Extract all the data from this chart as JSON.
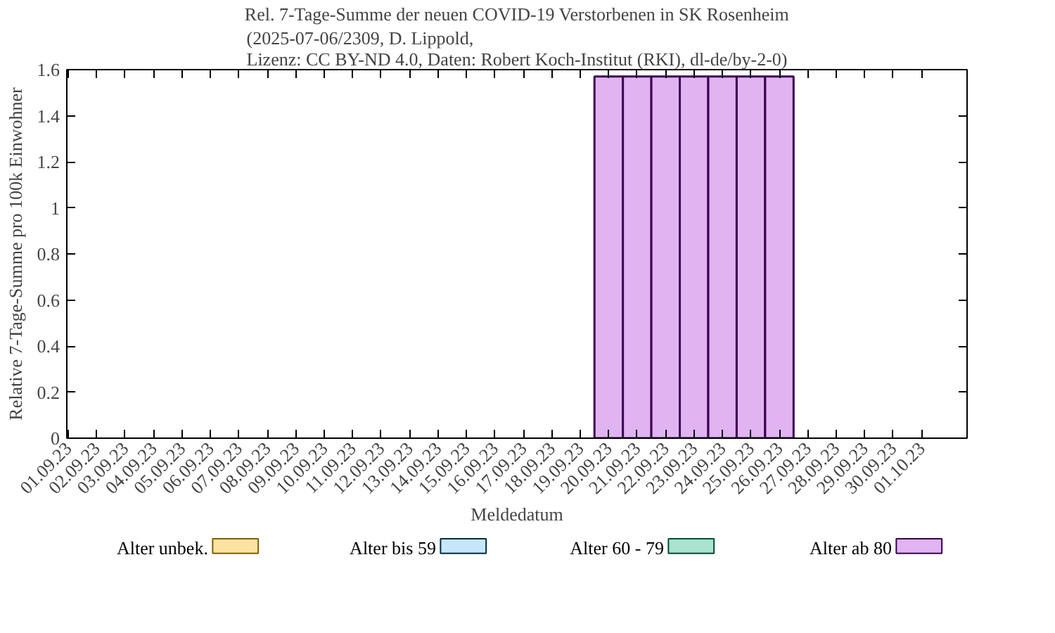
{
  "chart_data": {
    "type": "bar",
    "stacked": true,
    "title": "Rel. 7-Tage-Summe der neuen COVID-19 Verstorbenen in SK Rosenheim",
    "subtitle": "(2025-07-06/2309, D. Lippold,\nLizenz: CC BY-ND 4.0, Daten: Robert Koch-Institut (RKI), dl-de/by-2-0)",
    "xlabel": "Meldedatum",
    "ylabel": "Relative 7-Tage-Summe pro 100k Einwohner",
    "categories": [
      "01.09.23",
      "02.09.23",
      "03.09.23",
      "04.09.23",
      "05.09.23",
      "06.09.23",
      "07.09.23",
      "08.09.23",
      "09.09.23",
      "10.09.23",
      "11.09.23",
      "12.09.23",
      "13.09.23",
      "14.09.23",
      "15.09.23",
      "16.09.23",
      "17.09.23",
      "18.09.23",
      "19.09.23",
      "20.09.23",
      "21.09.23",
      "22.09.23",
      "23.09.23",
      "24.09.23",
      "25.09.23",
      "26.09.23",
      "27.09.23",
      "28.09.23",
      "29.09.23",
      "30.09.23",
      "01.10.23"
    ],
    "series": [
      {
        "name": "Alter unbek.",
        "color": "#fde3a0",
        "values": [
          0,
          0,
          0,
          0,
          0,
          0,
          0,
          0,
          0,
          0,
          0,
          0,
          0,
          0,
          0,
          0,
          0,
          0,
          0,
          0,
          0,
          0,
          0,
          0,
          0,
          0,
          0,
          0,
          0,
          0,
          0
        ]
      },
      {
        "name": "Alter bis 59",
        "color": "#c6e6f9",
        "values": [
          0,
          0,
          0,
          0,
          0,
          0,
          0,
          0,
          0,
          0,
          0,
          0,
          0,
          0,
          0,
          0,
          0,
          0,
          0,
          0,
          0,
          0,
          0,
          0,
          0,
          0,
          0,
          0,
          0,
          0,
          0
        ]
      },
      {
        "name": "Alter 60 - 79",
        "color": "#a9e2cf",
        "values": [
          0,
          0,
          0,
          0,
          0,
          0,
          0,
          0,
          0,
          0,
          0,
          0,
          0,
          0,
          0,
          0,
          0,
          0,
          0,
          0,
          0,
          0,
          0,
          0,
          0,
          0,
          0,
          0,
          0,
          0,
          0
        ]
      },
      {
        "name": "Alter ab 80",
        "color": "#dfb4f0",
        "values": [
          0,
          0,
          0,
          0,
          0,
          0,
          0,
          0,
          0,
          0,
          0,
          0,
          0,
          0,
          0,
          0,
          0,
          0,
          0,
          1.57,
          1.57,
          1.57,
          1.57,
          1.57,
          1.57,
          1.57,
          0,
          0,
          0,
          0,
          0
        ]
      }
    ],
    "ylim": [
      0,
      1.6
    ],
    "yticks": [
      0,
      0.2,
      0.4,
      0.6,
      0.8,
      1,
      1.2,
      1.4,
      1.6
    ],
    "grid": false,
    "legend": "bottom"
  }
}
